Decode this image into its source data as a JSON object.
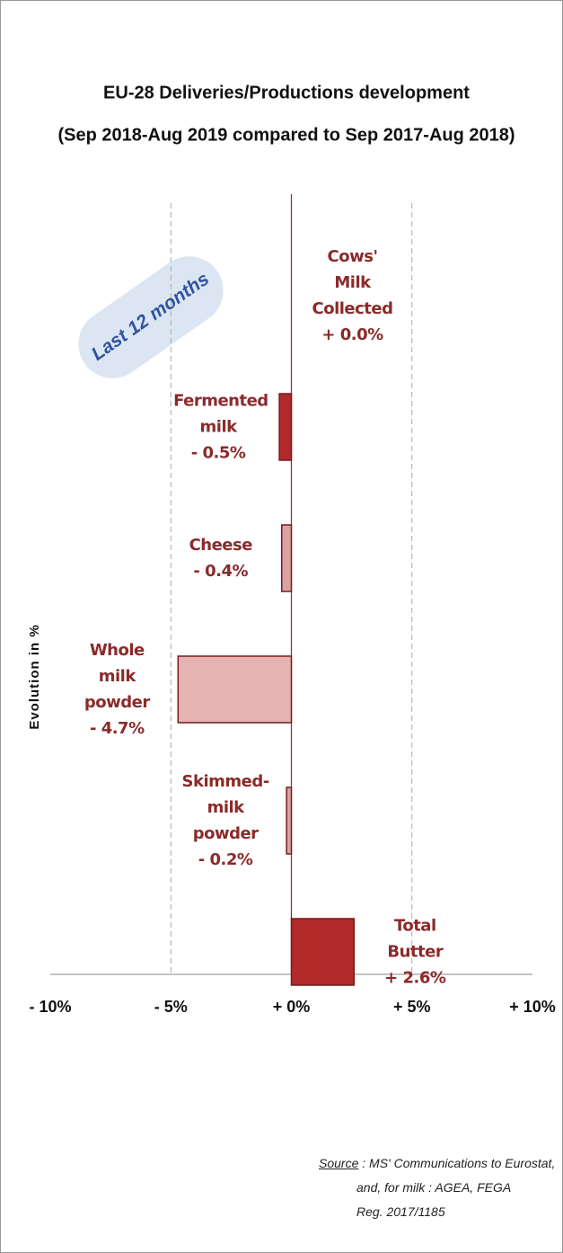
{
  "chart_data": {
    "type": "barh",
    "title": "EU-28 Deliveries/Productions development",
    "subtitle": "(Sep 2018-Aug 2019 compared to Sep 2017-Aug 2018)",
    "categories": [
      "Cows' Milk Collected",
      "Fermented milk",
      "Cheese",
      "Whole milk powder",
      "Skimmed-milk powder",
      "Total Butter"
    ],
    "values": [
      0.0,
      -0.5,
      -0.4,
      -4.7,
      -0.2,
      2.6
    ],
    "value_labels": [
      "+ 0.0%",
      "- 0.5%",
      "- 0.4%",
      "- 4.7%",
      "- 0.2%",
      "+ 2.6%"
    ],
    "colors": [
      "#8e1b1b",
      "#b02a2a",
      "#d9a3a3",
      "#e6b3b3",
      "#d9a3a3",
      "#b32a2a"
    ],
    "xlim": [
      -10,
      10
    ],
    "xticks": [
      {
        "value": -10,
        "label": "- 10%"
      },
      {
        "value": -5,
        "label": "- 5%"
      },
      {
        "value": 0,
        "label": "+ 0%"
      },
      {
        "value": 5,
        "label": "+ 5%"
      },
      {
        "value": 10,
        "label": "+ 10%"
      }
    ],
    "grid": true,
    "ylabel": "Evolution in %",
    "annotation": "Last 12 months",
    "source_label": "Source",
    "source_lines": [
      ": MS' Communications to Eurostat,",
      "and, for milk : AGEA, FEGA",
      "Reg. 2017/1185"
    ]
  }
}
